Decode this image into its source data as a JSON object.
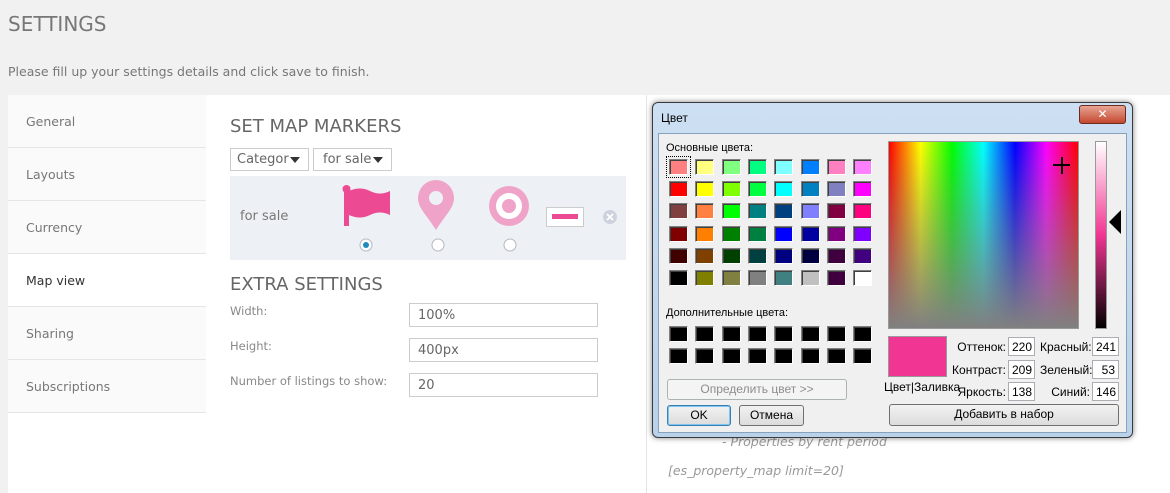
{
  "header": {
    "title": "SETTINGS",
    "subtitle": "Please fill up your settings details and click save to finish."
  },
  "sidebar": {
    "items": [
      "General",
      "Layouts",
      "Currency",
      "Map view",
      "Sharing",
      "Subscriptions"
    ],
    "active": 3
  },
  "map_markers": {
    "title": "SET MAP MARKERS",
    "filters": [
      "Categor",
      "for sale"
    ],
    "row_label": "for sale",
    "marker_color": "#ec4a93",
    "selected": 0
  },
  "extra_settings": {
    "title": "EXTRA SETTINGS",
    "fields": [
      {
        "label": "Width:",
        "value": "100%"
      },
      {
        "label": "Height:",
        "value": "400px"
      },
      {
        "label": "Number of listings to show:",
        "value": "20"
      }
    ]
  },
  "background_text": [
    "- Properties by rent period",
    "[es_property_map limit=20]"
  ],
  "dialog": {
    "title": "Цвет",
    "basic_label": "Основные цвета:",
    "basic_colors": [
      "#ff8080",
      "#ffff80",
      "#80ff80",
      "#00ff80",
      "#80ffff",
      "#0080ff",
      "#ff80c0",
      "#ff80ff",
      "#ff0000",
      "#ffff00",
      "#80ff00",
      "#00ff40",
      "#00ffff",
      "#0080c0",
      "#8080c0",
      "#ff00ff",
      "#804040",
      "#ff8040",
      "#00ff00",
      "#008080",
      "#004080",
      "#8080ff",
      "#800040",
      "#ff0080",
      "#800000",
      "#ff8000",
      "#008000",
      "#008040",
      "#0000ff",
      "#0000a0",
      "#800080",
      "#8000ff",
      "#400000",
      "#804000",
      "#004000",
      "#004040",
      "#000080",
      "#000040",
      "#400040",
      "#400080",
      "#000000",
      "#808000",
      "#808040",
      "#808080",
      "#408080",
      "#c0c0c0",
      "#400040",
      "#ffffff"
    ],
    "custom_label": "Дополнительные цвета:",
    "define_button": "Определить цвет >>",
    "ok": "OK",
    "cancel": "Отмена",
    "color_solid": "Цвет|Заливка",
    "add_button": "Добавить в набор",
    "fields": [
      {
        "label": "Оттенок:",
        "value": 220
      },
      {
        "label": "Контраст:",
        "value": 209
      },
      {
        "label": "Яркость:",
        "value": 138
      },
      {
        "label": "Красный:",
        "value": 241
      },
      {
        "label": "Зеленый:",
        "value": 53
      },
      {
        "label": "Синий:",
        "value": 146
      }
    ]
  }
}
